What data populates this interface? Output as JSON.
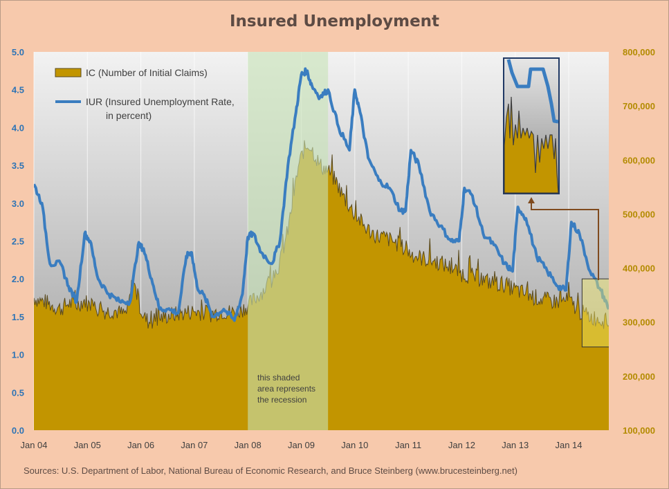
{
  "chart_data": {
    "type": "area+line",
    "title": "Insured Unemployment",
    "x_ticks": [
      "Jan 04",
      "Jan 05",
      "Jan 06",
      "Jan 07",
      "Jan 08",
      "Jan 09",
      "Jan 10",
      "Jan 11",
      "Jan 12",
      "Jan 13",
      "Jan 14"
    ],
    "x_range": [
      2004.0,
      2014.75
    ],
    "left_axis": {
      "ticks": [
        "0.0",
        "0.5",
        "1.0",
        "1.5",
        "2.0",
        "2.5",
        "3.0",
        "3.5",
        "4.0",
        "4.5",
        "5.0"
      ],
      "range": [
        0,
        5
      ],
      "color": "#2e74b5"
    },
    "right_axis": {
      "ticks": [
        "100,000",
        "200,000",
        "300,000",
        "400,000",
        "500,000",
        "600,000",
        "700,000",
        "800,000"
      ],
      "range": [
        100000,
        800000
      ],
      "color": "#b38b00"
    },
    "legend": {
      "ic_label": "IC (Number of Initial Claims)",
      "iur_label_line1": "IUR (Insured Unemployment Rate,",
      "iur_label_line2": "in percent)"
    },
    "recession": {
      "start": 2008.0,
      "end": 2009.5,
      "note_line1": "this shaded",
      "note_line2": "area represents",
      "note_line3": "the recession"
    },
    "colors": {
      "ic_fill": "#c29500",
      "iur_line": "#3a7dc0",
      "recession": "#c6e3b5",
      "highlight": "#f5ec6a"
    },
    "series": [
      {
        "name": "IC (Number of Initial Claims)",
        "axis": "right",
        "x": [
          2004.0,
          2004.1,
          2004.2,
          2004.35,
          2004.5,
          2004.65,
          2004.8,
          2004.95,
          2005.05,
          2005.2,
          2005.35,
          2005.5,
          2005.65,
          2005.75,
          2005.85,
          2005.95,
          2006.05,
          2006.15,
          2006.3,
          2006.5,
          2006.7,
          2006.85,
          2007.0,
          2007.15,
          2007.3,
          2007.5,
          2007.7,
          2007.85,
          2008.0,
          2008.15,
          2008.3,
          2008.45,
          2008.6,
          2008.75,
          2008.85,
          2008.95,
          2009.05,
          2009.15,
          2009.25,
          2009.35,
          2009.5,
          2009.65,
          2009.8,
          2010.0,
          2010.2,
          2010.4,
          2010.6,
          2010.8,
          2011.0,
          2011.2,
          2011.4,
          2011.6,
          2011.8,
          2012.0,
          2012.2,
          2012.4,
          2012.6,
          2012.8,
          2013.0,
          2013.2,
          2013.4,
          2013.6,
          2013.8,
          2014.0,
          2014.2,
          2014.4,
          2014.6,
          2014.75
        ],
        "y": [
          345000,
          340000,
          338000,
          330000,
          325000,
          335000,
          332000,
          340000,
          330000,
          325000,
          320000,
          322000,
          315000,
          318000,
          380000,
          340000,
          310000,
          300000,
          305000,
          312000,
          315000,
          318000,
          320000,
          318000,
          315000,
          320000,
          318000,
          322000,
          330000,
          345000,
          360000,
          380000,
          410000,
          470000,
          530000,
          590000,
          620000,
          630000,
          610000,
          590000,
          580000,
          560000,
          530000,
          500000,
          475000,
          460000,
          455000,
          445000,
          430000,
          420000,
          415000,
          410000,
          400000,
          390000,
          385000,
          378000,
          372000,
          370000,
          360000,
          352000,
          345000,
          340000,
          338000,
          340000,
          320000,
          310000,
          305000,
          300000
        ]
      },
      {
        "name": "IUR (Insured Unemployment Rate, in percent)",
        "axis": "left",
        "x": [
          2004.0,
          2004.15,
          2004.3,
          2004.5,
          2004.65,
          2004.8,
          2004.95,
          2005.05,
          2005.2,
          2005.4,
          2005.6,
          2005.8,
          2005.95,
          2006.05,
          2006.2,
          2006.35,
          2006.5,
          2006.7,
          2006.85,
          2006.95,
          2007.05,
          2007.2,
          2007.35,
          2007.55,
          2007.75,
          2007.9,
          2008.0,
          2008.1,
          2008.25,
          2008.45,
          2008.6,
          2008.75,
          2008.9,
          2009.0,
          2009.1,
          2009.2,
          2009.35,
          2009.5,
          2009.7,
          2009.9,
          2010.0,
          2010.1,
          2010.25,
          2010.45,
          2010.65,
          2010.85,
          2010.95,
          2011.05,
          2011.2,
          2011.4,
          2011.6,
          2011.8,
          2011.95,
          2012.05,
          2012.2,
          2012.4,
          2012.6,
          2012.8,
          2012.95,
          2013.05,
          2013.2,
          2013.4,
          2013.6,
          2013.8,
          2013.95,
          2014.05,
          2014.2,
          2014.4,
          2014.6,
          2014.75
        ],
        "y": [
          3.25,
          3.0,
          2.2,
          2.2,
          1.9,
          1.7,
          2.6,
          2.5,
          2.0,
          1.8,
          1.7,
          1.7,
          2.45,
          2.4,
          2.0,
          1.6,
          1.6,
          1.55,
          2.3,
          2.35,
          1.9,
          1.75,
          1.5,
          1.6,
          1.45,
          1.8,
          2.55,
          2.6,
          2.35,
          2.2,
          2.5,
          3.5,
          4.2,
          4.7,
          4.75,
          4.55,
          4.4,
          4.5,
          4.0,
          3.7,
          4.5,
          4.2,
          3.6,
          3.3,
          3.2,
          2.9,
          2.9,
          3.7,
          3.5,
          2.9,
          2.7,
          2.5,
          2.5,
          3.2,
          3.1,
          2.6,
          2.45,
          2.2,
          2.1,
          2.95,
          2.8,
          2.3,
          2.1,
          1.9,
          1.85,
          2.75,
          2.6,
          2.1,
          1.85,
          1.6
        ]
      }
    ]
  },
  "sources": "Sources: U.S. Department of Labor, National Bureau of Economic Research, and Bruce Steinberg (www.brucesteinberg.net)"
}
